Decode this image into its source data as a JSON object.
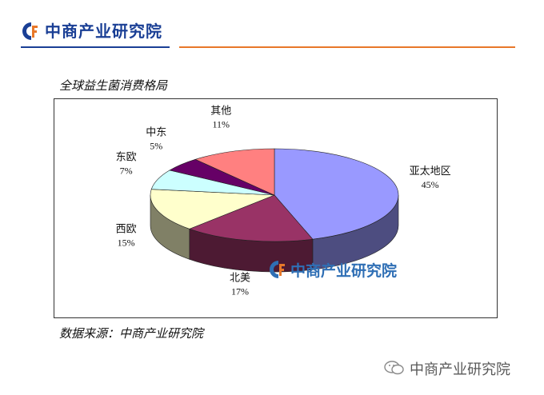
{
  "header": {
    "brand": "中商产业研究院"
  },
  "chart_data": {
    "type": "pie",
    "title": "全球益生菌消费格局",
    "slices": [
      {
        "label": "亚太地区",
        "value": 45,
        "value_label": "45%",
        "color": "#9999ff"
      },
      {
        "label": "北美",
        "value": 17,
        "value_label": "17%",
        "color": "#993366"
      },
      {
        "label": "西欧",
        "value": 15,
        "value_label": "15%",
        "color": "#ffffcc"
      },
      {
        "label": "东欧",
        "value": 7,
        "value_label": "7%",
        "color": "#ccffff"
      },
      {
        "label": "中东",
        "value": 5,
        "value_label": "5%",
        "color": "#660066"
      },
      {
        "label": "其他",
        "value": 11,
        "value_label": "11%",
        "color": "#ff8080"
      }
    ],
    "watermark": "中商产业研究院"
  },
  "source": {
    "text": "数据来源：中商产业研究院"
  },
  "footer": {
    "text": "中商产业研究院",
    "icon": "wechat-icon"
  },
  "colors": {
    "brand_blue": "#1a3f95",
    "brand_orange": "#e8782a",
    "watermark_blue": "#2f6fb5"
  }
}
